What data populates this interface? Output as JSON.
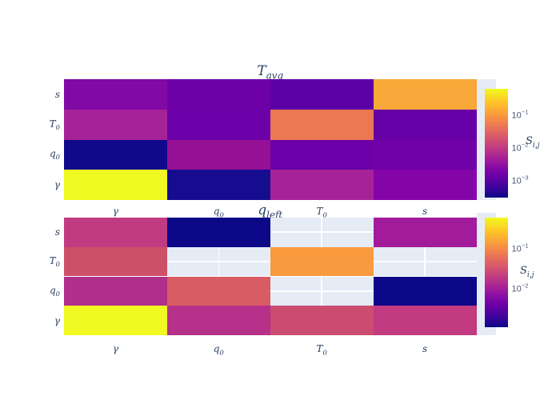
{
  "figure": {
    "background_color": "#ffffff",
    "plot_background_color": "#e5ecf6",
    "label_color": "#2a3f5f",
    "tick_label_color": "#4c5772",
    "missing_cell_gridline_color": "#ffffff"
  },
  "chart_data": [
    {
      "type": "heatmap",
      "title": {
        "base": "T",
        "sub": "avg"
      },
      "colorscale": "plasma",
      "scale": "log",
      "log_range": [
        -3.54,
        -0.22
      ],
      "colorscale_stops": [
        "#0d0887",
        "#46039f",
        "#7201a8",
        "#9c179e",
        "#bd3786",
        "#d8576b",
        "#ed7953",
        "#fb9f3a",
        "#fdca26",
        "#f0f921"
      ],
      "x_tick_labels": [
        {
          "base": "γ"
        },
        {
          "base": "q",
          "sub": "0"
        },
        {
          "base": "T",
          "sub": "0"
        },
        {
          "base": "s"
        }
      ],
      "colorbar": {
        "title": {
          "base": "S",
          "sub": "i,j"
        },
        "ticks": [
          {
            "base": "10",
            "sup": "−1",
            "log_value": -1
          },
          {
            "base": "10",
            "sup": "−2",
            "log_value": -2
          },
          {
            "base": "10",
            "sup": "−3",
            "log_value": -3
          }
        ]
      },
      "rows": [
        {
          "label": {
            "base": "s"
          },
          "cells": [
            {
              "value": 0.0023,
              "color": "#8109a5"
            },
            {
              "value": 0.0014,
              "color": "#6e00a8"
            },
            {
              "value": 0.0011,
              "color": "#5c01a6"
            },
            {
              "value": 0.12,
              "color": "#f9a83a"
            }
          ]
        },
        {
          "label": {
            "base": "T",
            "sub": "0"
          },
          "cells": [
            {
              "value": 0.0045,
              "color": "#a62298"
            },
            {
              "value": 0.0013,
              "color": "#6b00a8"
            },
            {
              "value": 0.045,
              "color": "#ec7853"
            },
            {
              "value": 0.0012,
              "color": "#6600a7"
            }
          ]
        },
        {
          "label": {
            "base": "q",
            "sub": "0"
          },
          "cells": [
            {
              "value": 0.00031,
              "color": "#100a8a"
            },
            {
              "value": 0.0031,
              "color": "#951095"
            },
            {
              "value": 0.0013,
              "color": "#6b00a8"
            },
            {
              "value": 0.0015,
              "color": "#7000a8"
            }
          ]
        },
        {
          "label": {
            "base": "γ"
          },
          "cells": [
            {
              "value": 0.6,
              "color": "#f0f921"
            },
            {
              "value": 0.00036,
              "color": "#150c90"
            },
            {
              "value": 0.0045,
              "color": "#a62298"
            },
            {
              "value": 0.0021,
              "color": "#8405a7"
            }
          ]
        }
      ]
    },
    {
      "type": "heatmap",
      "title": {
        "base": "q",
        "sub": "left"
      },
      "colorscale": "plasma",
      "scale": "log",
      "log_range": [
        -2.99,
        -0.23
      ],
      "colorscale_stops": [
        "#0d0887",
        "#46039f",
        "#7201a8",
        "#9c179e",
        "#bd3786",
        "#d8576b",
        "#ed7953",
        "#fb9f3a",
        "#fdca26",
        "#f0f921"
      ],
      "x_tick_labels": [
        {
          "base": "γ"
        },
        {
          "base": "q",
          "sub": "0"
        },
        {
          "base": "T",
          "sub": "0"
        },
        {
          "base": "s"
        }
      ],
      "colorbar": {
        "title": {
          "base": "S",
          "sub": "i,j"
        },
        "ticks": [
          {
            "base": "10",
            "sup": "−1",
            "log_value": -1
          },
          {
            "base": "10",
            "sup": "−2",
            "log_value": -2
          }
        ]
      },
      "rows": [
        {
          "label": {
            "base": "s"
          },
          "cells": [
            {
              "value": 0.019,
              "color": "#c13b82"
            },
            {
              "value": 0.001,
              "color": "#0d0887"
            },
            null,
            {
              "value": 0.0089,
              "color": "#a21b9a"
            }
          ]
        },
        {
          "label": {
            "base": "T",
            "sub": "0"
          },
          "cells": [
            {
              "value": 0.03,
              "color": "#cd5069"
            },
            null,
            {
              "value": 0.14,
              "color": "#f99a3e"
            },
            null
          ]
        },
        {
          "label": {
            "base": "q",
            "sub": "0"
          },
          "cells": [
            {
              "value": 0.014,
              "color": "#b02e8c"
            },
            {
              "value": 0.038,
              "color": "#d85c64"
            },
            null,
            {
              "value": 0.001,
              "color": "#0d0887"
            }
          ]
        },
        {
          "label": {
            "base": "γ"
          },
          "cells": [
            {
              "value": 0.59,
              "color": "#f0f921"
            },
            {
              "value": 0.016,
              "color": "#b5318a"
            },
            {
              "value": 0.028,
              "color": "#cc4c70"
            },
            {
              "value": 0.02,
              "color": "#c23a80"
            }
          ]
        }
      ]
    }
  ]
}
